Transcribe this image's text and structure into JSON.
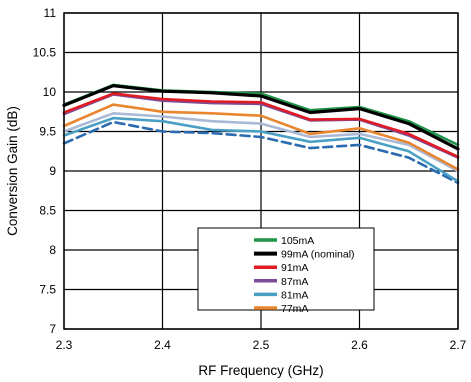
{
  "chart_data": {
    "type": "line",
    "xlabel": "RF Frequency (GHz)",
    "ylabel": "Conversion Gain  (dB)",
    "xlim": [
      2.3,
      2.7
    ],
    "ylim": [
      7,
      11
    ],
    "xticks": [
      "2.3",
      "2.4",
      "2.5",
      "2.6",
      "2.7"
    ],
    "yticks": [
      "7",
      "7.5",
      "8",
      "8.5",
      "9",
      "9.5",
      "10",
      "10.5",
      "11"
    ],
    "grid": true,
    "legend_placement": "lower-center",
    "x": [
      2.3,
      2.35,
      2.4,
      2.45,
      2.5,
      2.55,
      2.6,
      2.65,
      2.7
    ],
    "series": [
      {
        "name": "105mA",
        "color": "#1e9448",
        "style": "solid",
        "values": [
          9.84,
          10.09,
          10.02,
          10.0,
          9.98,
          9.77,
          9.81,
          9.63,
          9.33
        ]
      },
      {
        "name": "99mA (nominal)",
        "color": "#000000",
        "style": "solid",
        "values": [
          9.83,
          10.08,
          10.01,
          9.99,
          9.95,
          9.74,
          9.79,
          9.6,
          9.28
        ]
      },
      {
        "name": "91mA",
        "color": "#e01b24",
        "style": "solid",
        "values": [
          9.74,
          9.98,
          9.91,
          9.88,
          9.87,
          9.65,
          9.66,
          9.47,
          9.18
        ]
      },
      {
        "name": "87mA",
        "color": "#7d4b97",
        "style": "solid",
        "values": [
          9.72,
          9.97,
          9.89,
          9.86,
          9.85,
          9.64,
          9.65,
          9.45,
          9.17
        ]
      },
      {
        "name": "81mA",
        "color": "#4aa0c4",
        "style": "solid",
        "values": [
          9.45,
          9.67,
          9.63,
          9.52,
          9.5,
          9.37,
          9.42,
          9.25,
          8.87
        ]
      },
      {
        "name": "77mA",
        "color": "#e8862f",
        "style": "solid",
        "values": [
          9.57,
          9.84,
          9.75,
          9.73,
          9.7,
          9.47,
          9.54,
          9.36,
          9.02
        ]
      },
      {
        "name": "",
        "color": "#a9b9d6",
        "style": "solid",
        "values": [
          9.5,
          9.73,
          9.69,
          9.63,
          9.6,
          9.43,
          9.47,
          9.33,
          9.0
        ]
      },
      {
        "name": "",
        "color": "#2b6cb0",
        "style": "dashed",
        "values": [
          9.35,
          9.62,
          9.5,
          9.48,
          9.43,
          9.29,
          9.33,
          9.17,
          8.85
        ]
      }
    ]
  }
}
